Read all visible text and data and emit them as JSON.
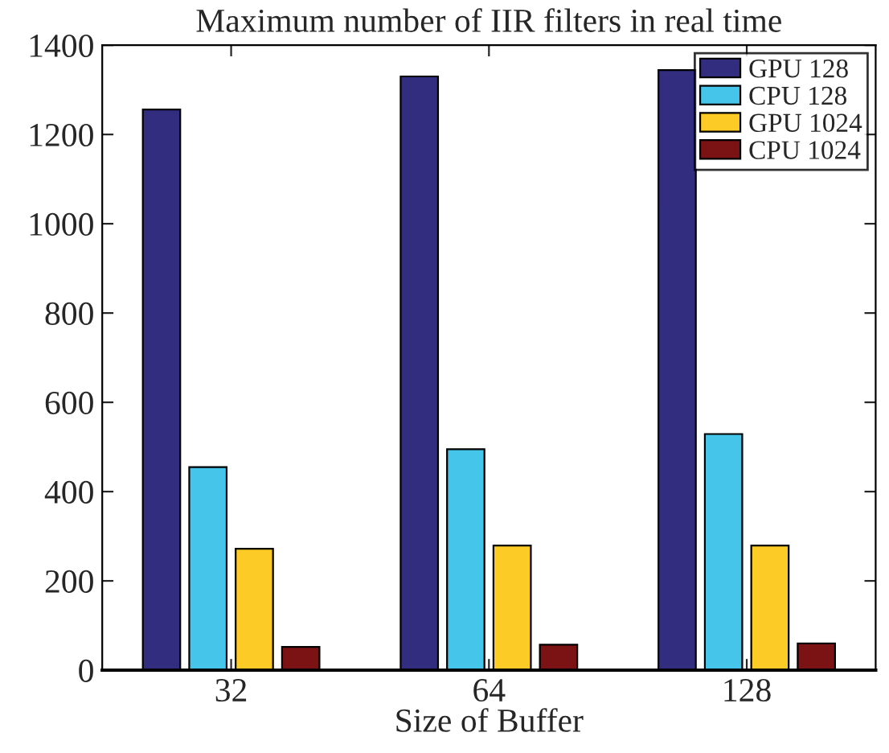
{
  "chart_data": {
    "type": "bar",
    "title": "Maximum number of IIR filters in real time",
    "xlabel": "Size of Buffer",
    "categories": [
      "32",
      "64",
      "128"
    ],
    "series": [
      {
        "name": "GPU 128",
        "color": "#332d80",
        "values": [
          1256,
          1330,
          1344
        ]
      },
      {
        "name": "CPU 128",
        "color": "#45c5ea",
        "values": [
          455,
          495,
          529
        ]
      },
      {
        "name": "GPU 1024",
        "color": "#fdcb26",
        "values": [
          272,
          279,
          279
        ]
      },
      {
        "name": "CPU 1024",
        "color": "#7b1214",
        "values": [
          52,
          57,
          60
        ]
      }
    ],
    "ylim": [
      0,
      1400
    ],
    "yticks": [
      0,
      200,
      400,
      600,
      800,
      1000,
      1200,
      1400
    ],
    "grid": false,
    "legend": "top right"
  }
}
